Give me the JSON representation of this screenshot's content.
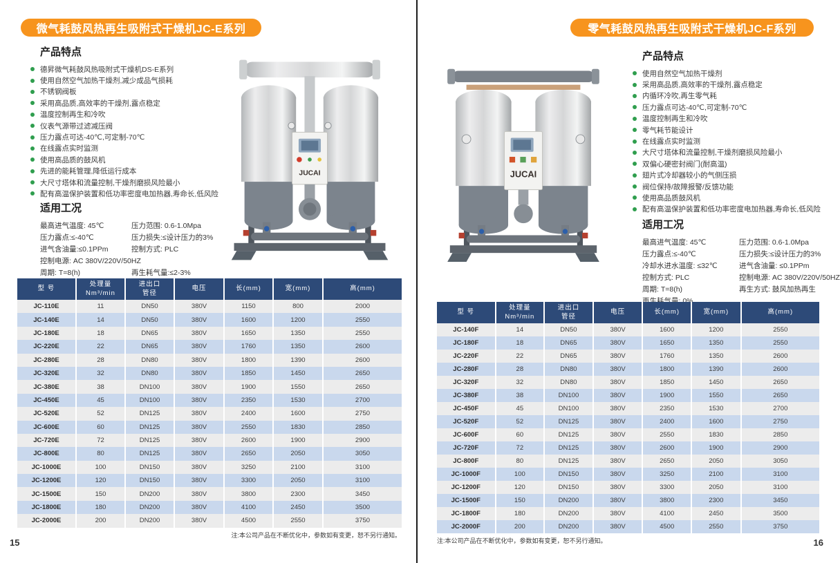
{
  "brand_label": "JUCAI",
  "colors": {
    "banner_orange": "#F7941E",
    "table_header_navy": "#2D4A78",
    "row_blue": "#C9D8ED",
    "row_gray": "#ECECEC",
    "bullet_green": "#2F9E4E"
  },
  "pages": [
    {
      "page_number": "15",
      "banner_title": "微气耗鼓风热再生吸附式干燥机JC-E系列",
      "features_title": "产品特点",
      "features": [
        "德昇微气耗鼓风热吸附式干燥机DS-E系列",
        "使用自然空气加热干燥剂,减少成品气损耗",
        "不锈钢阀板",
        "采用高品质,高效率的干燥剂,露点稳定",
        "温度控制再生和冷吹",
        "仪表气源带过滤减压阀",
        "压力露点可达-40℃,可定制-70℃",
        "在线露点实时监测",
        "使用高品质的鼓风机",
        "先进的能耗管理,降低运行成本",
        "大尺寸塔体和流量控制,干燥剂磨损风险最小",
        "配有高温保护装置和低功率密度电加热器,寿命长,低风险"
      ],
      "conditions_title": "适用工况",
      "conditions": [
        [
          "最高进气温度: 45℃",
          "压力范围: 0.6-1.0Mpa"
        ],
        [
          "压力露点:≤-40℃",
          "压力损失:≤设计压力的3%"
        ],
        [
          "进气含油量:≤0.1PPm",
          "控制方式: PLC"
        ],
        [
          "控制电源: AC 380V/220V/50HZ",
          ""
        ],
        [
          "周期: T=8(h)",
          "再生耗气量:≤2-3%"
        ]
      ],
      "table": {
        "headers": [
          "型  号",
          "处理量\nNm³/min",
          "进出口\n管径",
          "电压",
          "长(mm)",
          "宽(mm)",
          "高(mm)"
        ],
        "rows": [
          [
            "JC-110E",
            "11",
            "DN50",
            "380V",
            "1150",
            "800",
            "2000"
          ],
          [
            "JC-140E",
            "14",
            "DN50",
            "380V",
            "1600",
            "1200",
            "2550"
          ],
          [
            "JC-180E",
            "18",
            "DN65",
            "380V",
            "1650",
            "1350",
            "2550"
          ],
          [
            "JC-220E",
            "22",
            "DN65",
            "380V",
            "1760",
            "1350",
            "2600"
          ],
          [
            "JC-280E",
            "28",
            "DN80",
            "380V",
            "1800",
            "1390",
            "2600"
          ],
          [
            "JC-320E",
            "32",
            "DN80",
            "380V",
            "1850",
            "1450",
            "2650"
          ],
          [
            "JC-380E",
            "38",
            "DN100",
            "380V",
            "1900",
            "1550",
            "2650"
          ],
          [
            "JC-450E",
            "45",
            "DN100",
            "380V",
            "2350",
            "1530",
            "2700"
          ],
          [
            "JC-520E",
            "52",
            "DN125",
            "380V",
            "2400",
            "1600",
            "2750"
          ],
          [
            "JC-600E",
            "60",
            "DN125",
            "380V",
            "2550",
            "1830",
            "2850"
          ],
          [
            "JC-720E",
            "72",
            "DN125",
            "380V",
            "2600",
            "1900",
            "2900"
          ],
          [
            "JC-800E",
            "80",
            "DN125",
            "380V",
            "2650",
            "2050",
            "3050"
          ],
          [
            "JC-1000E",
            "100",
            "DN150",
            "380V",
            "3250",
            "2100",
            "3100"
          ],
          [
            "JC-1200E",
            "120",
            "DN150",
            "380V",
            "3300",
            "2050",
            "3100"
          ],
          [
            "JC-1500E",
            "150",
            "DN200",
            "380V",
            "3800",
            "2300",
            "3450"
          ],
          [
            "JC-1800E",
            "180",
            "DN200",
            "380V",
            "4100",
            "2450",
            "3500"
          ],
          [
            "JC-2000E",
            "200",
            "DN200",
            "380V",
            "4500",
            "2550",
            "3750"
          ]
        ]
      },
      "note": "注:本公司产品在不断优化中，参数如有变更，恕不另行通知。"
    },
    {
      "page_number": "16",
      "banner_title": "零气耗鼓风热再生吸附式干燥机JC-F系列",
      "features_title": "产品特点",
      "features": [
        "使用自然空气加热干燥剂",
        "采用高品质,高效率的干燥剂,露点稳定",
        "内循环冷吹,再生零气耗",
        "压力露点可达-40℃,可定制-70℃",
        "温度控制再生和冷吹",
        "零气耗节能设计",
        "在线露点实时监测",
        "大尺寸塔体和流量控制,干燥剂磨损风险最小",
        "双偏心硬密封阀门(耐高温)",
        "翅片式冷却器较小的气侧压损",
        "阀位保持/故障报警/反馈功能",
        "使用高品质鼓风机",
        "配有高温保护装置和低功率密度电加热器,寿命长,低风险"
      ],
      "conditions_title": "适用工况",
      "conditions": [
        [
          "最高进气温度: 45℃",
          "压力范围: 0.6-1.0Mpa"
        ],
        [
          "压力露点:≤-40℃",
          "压力损失:≤设计压力的3%"
        ],
        [
          "冷却水进水温度: ≤32℃",
          "进气含油量: ≤0.1PPm"
        ],
        [
          "控制方式: PLC",
          "控制电源: AC 380V/220V/50HZ"
        ],
        [
          "周期: T=8(h)",
          "再生方式: 鼓风加热再生"
        ],
        [
          "再生耗气量: 0%",
          ""
        ]
      ],
      "table": {
        "headers": [
          "型  号",
          "处理量\nNm³/min",
          "进出口\n管径",
          "电压",
          "长(mm)",
          "宽(mm)",
          "高(mm)"
        ],
        "rows": [
          [
            "JC-140F",
            "14",
            "DN50",
            "380V",
            "1600",
            "1200",
            "2550"
          ],
          [
            "JC-180F",
            "18",
            "DN65",
            "380V",
            "1650",
            "1350",
            "2550"
          ],
          [
            "JC-220F",
            "22",
            "DN65",
            "380V",
            "1760",
            "1350",
            "2600"
          ],
          [
            "JC-280F",
            "28",
            "DN80",
            "380V",
            "1800",
            "1390",
            "2600"
          ],
          [
            "JC-320F",
            "32",
            "DN80",
            "380V",
            "1850",
            "1450",
            "2650"
          ],
          [
            "JC-380F",
            "38",
            "DN100",
            "380V",
            "1900",
            "1550",
            "2650"
          ],
          [
            "JC-450F",
            "45",
            "DN100",
            "380V",
            "2350",
            "1530",
            "2700"
          ],
          [
            "JC-520F",
            "52",
            "DN125",
            "380V",
            "2400",
            "1600",
            "2750"
          ],
          [
            "JC-600F",
            "60",
            "DN125",
            "380V",
            "2550",
            "1830",
            "2850"
          ],
          [
            "JC-720F",
            "72",
            "DN125",
            "380V",
            "2600",
            "1900",
            "2900"
          ],
          [
            "JC-800F",
            "80",
            "DN125",
            "380V",
            "2650",
            "2050",
            "3050"
          ],
          [
            "JC-1000F",
            "100",
            "DN150",
            "380V",
            "3250",
            "2100",
            "3100"
          ],
          [
            "JC-1200F",
            "120",
            "DN150",
            "380V",
            "3300",
            "2050",
            "3100"
          ],
          [
            "JC-1500F",
            "150",
            "DN200",
            "380V",
            "3800",
            "2300",
            "3450"
          ],
          [
            "JC-1800F",
            "180",
            "DN200",
            "380V",
            "4100",
            "2450",
            "3500"
          ],
          [
            "JC-2000F",
            "200",
            "DN200",
            "380V",
            "4500",
            "2550",
            "3750"
          ]
        ]
      },
      "note": "注:本公司产品在不断优化中，参数如有变更，恕不另行通知。"
    }
  ]
}
